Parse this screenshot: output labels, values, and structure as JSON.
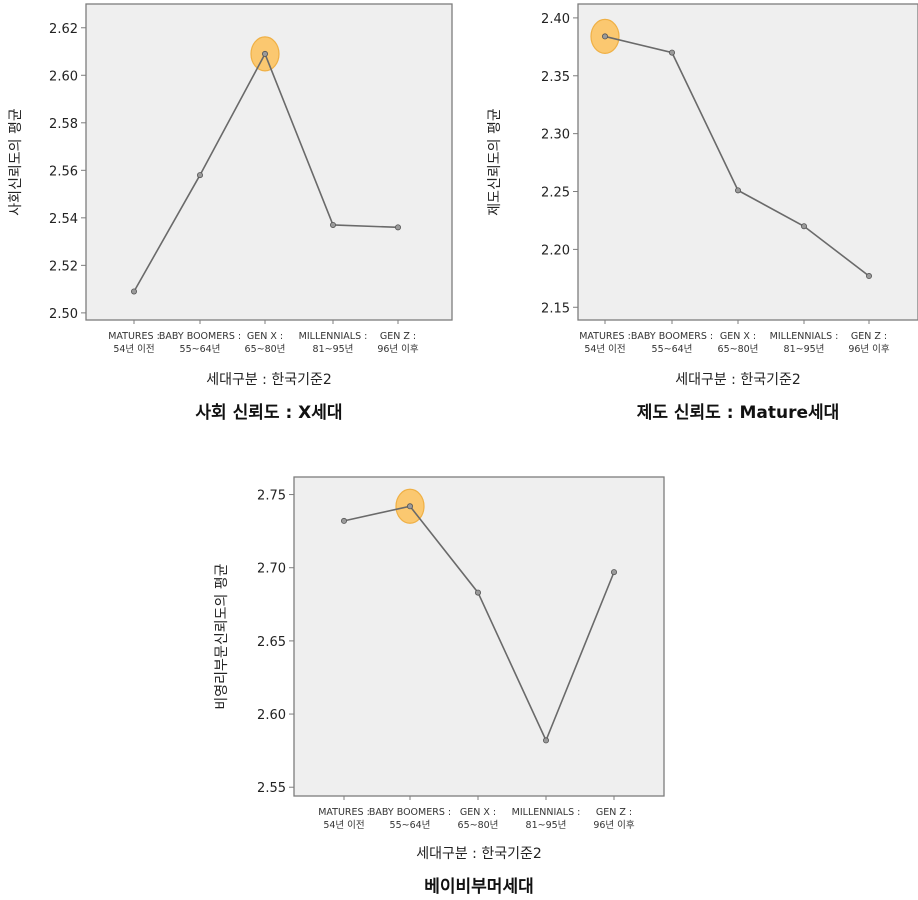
{
  "colors": {
    "plot_background": "#efefef",
    "line": "#6a6a6a",
    "highlight": "#fcc66a"
  },
  "chart_data": [
    {
      "type": "line",
      "title": "사회 신뢰도 : X세대",
      "xlabel": "세대구분 : 한국기준2",
      "ylabel": "사회신뢰도의 평균",
      "categories": [
        [
          "MATURES :",
          "54년 이전"
        ],
        [
          "BABY BOOMERS :",
          "55~64년"
        ],
        [
          "GEN X :",
          "65~80년"
        ],
        [
          "MILLENNIALS :",
          "81~95년"
        ],
        [
          "GEN Z :",
          "96년 이후"
        ]
      ],
      "values": [
        2.509,
        2.558,
        2.609,
        2.537,
        2.536
      ],
      "ylim": [
        2.497,
        2.63
      ],
      "yticks": [
        2.5,
        2.52,
        2.54,
        2.56,
        2.58,
        2.6,
        2.62
      ],
      "ytick_labels": [
        "2.50",
        "2.52",
        "2.54",
        "2.56",
        "2.58",
        "2.60",
        "2.62"
      ],
      "highlight_index": 2,
      "grid": false
    },
    {
      "type": "line",
      "title": "제도 신뢰도 : Mature세대",
      "xlabel": "세대구분 : 한국기준2",
      "ylabel": "제도신뢰도의 평균",
      "categories": [
        [
          "MATURES :",
          "54년 이전"
        ],
        [
          "BABY BOOMERS :",
          "55~64년"
        ],
        [
          "GEN X :",
          "65~80년"
        ],
        [
          "MILLENNIALS :",
          "81~95년"
        ],
        [
          "GEN Z :",
          "96년 이후"
        ]
      ],
      "values": [
        2.384,
        2.37,
        2.251,
        2.22,
        2.177
      ],
      "ylim": [
        2.139,
        2.412
      ],
      "yticks": [
        2.15,
        2.2,
        2.25,
        2.3,
        2.35,
        2.4
      ],
      "ytick_labels": [
        "2.15",
        "2.20",
        "2.25",
        "2.30",
        "2.35",
        "2.40"
      ],
      "highlight_index": 0,
      "grid": false
    },
    {
      "type": "line",
      "title": "베이비부머세대",
      "xlabel": "세대구분 : 한국기준2",
      "ylabel": "비영리부문신뢰도의 평균",
      "categories": [
        [
          "MATURES :",
          "54년 이전"
        ],
        [
          "BABY BOOMERS :",
          "55~64년"
        ],
        [
          "GEN X :",
          "65~80년"
        ],
        [
          "MILLENNIALS :",
          "81~95년"
        ],
        [
          "GEN Z :",
          "96년 이후"
        ]
      ],
      "values": [
        2.732,
        2.742,
        2.683,
        2.582,
        2.697
      ],
      "ylim": [
        2.544,
        2.762
      ],
      "yticks": [
        2.55,
        2.6,
        2.65,
        2.7,
        2.75
      ],
      "ytick_labels": [
        "2.55",
        "2.60",
        "2.65",
        "2.70",
        "2.75"
      ],
      "highlight_index": 1,
      "grid": false
    }
  ]
}
